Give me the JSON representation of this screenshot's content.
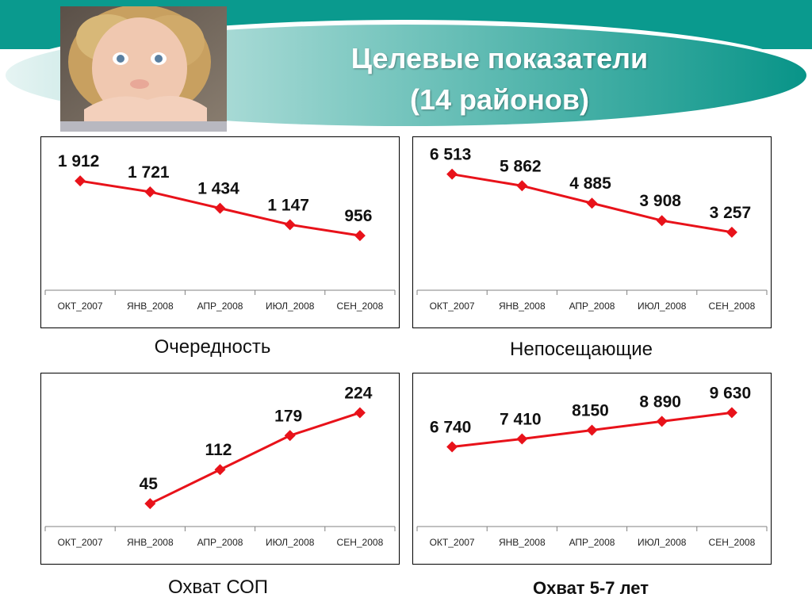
{
  "header": {
    "title_line1": "Целевые показатели",
    "title_line2": "(14 районов)"
  },
  "colors": {
    "teal": "#0a9a8e",
    "line": "#e8121a",
    "title_text": "#ffffff"
  },
  "chart_data": [
    {
      "type": "line",
      "categories": [
        "ОКТ_2007",
        "ЯНВ_2008",
        "АПР_2008",
        "ИЮЛ_2008",
        "СЕН_2008"
      ],
      "values": [
        1912,
        1721,
        1434,
        1147,
        956
      ],
      "data_labels": [
        "1 912",
        "1 721",
        "1 434",
        "1 147",
        "956"
      ],
      "ylim": [
        0,
        2400
      ],
      "caption": "Очередность"
    },
    {
      "type": "line",
      "categories": [
        "ОКТ_2007",
        "ЯНВ_2008",
        "АПР_2008",
        "ИЮЛ_2008",
        "СЕН_2008"
      ],
      "values": [
        6513,
        5862,
        4885,
        3908,
        3257
      ],
      "data_labels": [
        "6 513",
        "5 862",
        "4 885",
        "3 908",
        "3 257"
      ],
      "ylim": [
        0,
        7700
      ],
      "caption": "Непосещающие"
    },
    {
      "type": "line",
      "categories": [
        "ОКТ_2007",
        "ЯНВ_2008",
        "АПР_2008",
        "ИЮЛ_2008",
        "СЕН_2008"
      ],
      "values": [
        null,
        45,
        112,
        179,
        224
      ],
      "data_labels": [
        "",
        "45",
        "112",
        "179",
        "224"
      ],
      "ylim": [
        0,
        270
      ],
      "caption": "Охват СОП"
    },
    {
      "type": "line",
      "categories": [
        "ОКТ_2007",
        "ЯНВ_2008",
        "АПР_2008",
        "ИЮЛ_2008",
        "СЕН_2008"
      ],
      "values": [
        6740,
        7410,
        8150,
        8890,
        9630
      ],
      "data_labels": [
        "6 740",
        "7 410",
        "8150",
        "8 890",
        "9 630"
      ],
      "ylim": [
        0,
        11600
      ],
      "caption": "Охват 5-7 лет"
    }
  ]
}
